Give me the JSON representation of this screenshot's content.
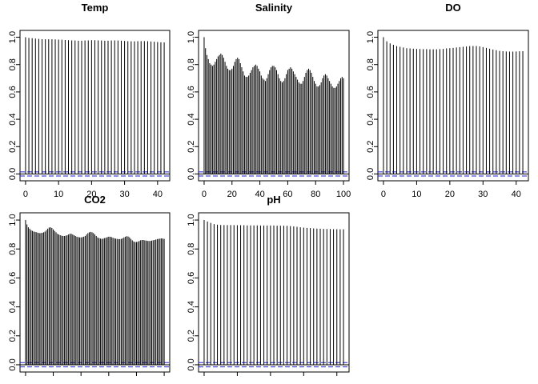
{
  "chart_data": [
    {
      "type": "bar",
      "title": "Temp",
      "xlabel": "",
      "ylabel": "",
      "xlim": [
        0,
        42
      ],
      "ylim": [
        0,
        1
      ],
      "x_ticks": [
        "0",
        "10",
        "20",
        "30",
        "40"
      ],
      "y_ticks": [
        "0.0",
        "0.2",
        "0.4",
        "0.6",
        "0.8",
        "1.0"
      ],
      "confidence_band": 0.015,
      "lags_from": 0,
      "values": [
        1.0,
        0.995,
        0.993,
        0.99,
        0.988,
        0.986,
        0.985,
        0.985,
        0.985,
        0.984,
        0.983,
        0.982,
        0.98,
        0.978,
        0.977,
        0.976,
        0.975,
        0.975,
        0.976,
        0.977,
        0.978,
        0.978,
        0.977,
        0.976,
        0.975,
        0.975,
        0.976,
        0.977,
        0.976,
        0.975,
        0.973,
        0.971,
        0.97,
        0.97,
        0.971,
        0.972,
        0.972,
        0.971,
        0.969,
        0.967,
        0.965,
        0.963,
        0.962
      ]
    },
    {
      "type": "bar",
      "title": "Salinity",
      "xlabel": "",
      "ylabel": "",
      "xlim": [
        0,
        100
      ],
      "ylim": [
        0,
        1
      ],
      "x_ticks": [
        "0",
        "20",
        "40",
        "60",
        "80",
        "100"
      ],
      "y_ticks": [
        "0.0",
        "0.2",
        "0.4",
        "0.6",
        "0.8",
        "1.0"
      ],
      "confidence_band": 0.015,
      "lags_from": 0,
      "values": [
        1.0,
        0.92,
        0.87,
        0.84,
        0.81,
        0.8,
        0.79,
        0.8,
        0.82,
        0.84,
        0.86,
        0.87,
        0.88,
        0.87,
        0.85,
        0.82,
        0.79,
        0.77,
        0.76,
        0.76,
        0.77,
        0.79,
        0.82,
        0.84,
        0.85,
        0.84,
        0.81,
        0.78,
        0.75,
        0.72,
        0.71,
        0.71,
        0.72,
        0.74,
        0.76,
        0.78,
        0.79,
        0.8,
        0.79,
        0.77,
        0.75,
        0.72,
        0.7,
        0.69,
        0.68,
        0.7,
        0.73,
        0.76,
        0.78,
        0.79,
        0.79,
        0.78,
        0.76,
        0.73,
        0.7,
        0.68,
        0.67,
        0.68,
        0.7,
        0.73,
        0.76,
        0.77,
        0.78,
        0.77,
        0.75,
        0.73,
        0.71,
        0.69,
        0.67,
        0.66,
        0.66,
        0.68,
        0.71,
        0.74,
        0.76,
        0.77,
        0.76,
        0.74,
        0.71,
        0.68,
        0.66,
        0.64,
        0.64,
        0.65,
        0.67,
        0.7,
        0.72,
        0.73,
        0.72,
        0.7,
        0.68,
        0.66,
        0.64,
        0.63,
        0.63,
        0.64,
        0.66,
        0.68,
        0.7,
        0.71,
        0.7
      ]
    },
    {
      "type": "bar",
      "title": "DO",
      "xlabel": "",
      "ylabel": "",
      "xlim": [
        0,
        42
      ],
      "ylim": [
        0,
        1
      ],
      "x_ticks": [
        "0",
        "10",
        "20",
        "30",
        "40"
      ],
      "y_ticks": [
        "0.0",
        "0.2",
        "0.4",
        "0.6",
        "0.8",
        "1.0"
      ],
      "confidence_band": 0.015,
      "lags_from": 0,
      "values": [
        1.0,
        0.97,
        0.955,
        0.945,
        0.935,
        0.93,
        0.925,
        0.92,
        0.918,
        0.916,
        0.915,
        0.914,
        0.913,
        0.913,
        0.912,
        0.912,
        0.912,
        0.913,
        0.915,
        0.918,
        0.92,
        0.922,
        0.925,
        0.928,
        0.93,
        0.932,
        0.935,
        0.936,
        0.936,
        0.933,
        0.928,
        0.922,
        0.916,
        0.91,
        0.905,
        0.9,
        0.898,
        0.896,
        0.895,
        0.895,
        0.896,
        0.897,
        0.898
      ]
    },
    {
      "type": "bar",
      "title": "CO2",
      "xlabel": "",
      "ylabel": "",
      "xlim": [
        0,
        100
      ],
      "ylim": [
        0,
        1
      ],
      "x_ticks": [
        "",
        "",
        "",
        "",
        "",
        ""
      ],
      "y_ticks": [
        "0.0",
        "0.2",
        "0.4",
        "0.6",
        "0.8",
        "1.0"
      ],
      "confidence_band": 0.015,
      "lags_from": 0,
      "values": [
        1.0,
        0.97,
        0.95,
        0.94,
        0.93,
        0.925,
        0.92,
        0.918,
        0.915,
        0.912,
        0.91,
        0.91,
        0.912,
        0.915,
        0.92,
        0.93,
        0.94,
        0.948,
        0.95,
        0.945,
        0.935,
        0.925,
        0.915,
        0.905,
        0.9,
        0.895,
        0.892,
        0.89,
        0.89,
        0.892,
        0.895,
        0.9,
        0.905,
        0.905,
        0.9,
        0.895,
        0.89,
        0.885,
        0.882,
        0.88,
        0.88,
        0.882,
        0.885,
        0.89,
        0.9,
        0.91,
        0.915,
        0.918,
        0.915,
        0.91,
        0.9,
        0.89,
        0.88,
        0.875,
        0.872,
        0.87,
        0.872,
        0.875,
        0.878,
        0.882,
        0.885,
        0.885,
        0.882,
        0.878,
        0.874,
        0.872,
        0.87,
        0.868,
        0.868,
        0.87,
        0.874,
        0.88,
        0.885,
        0.888,
        0.886,
        0.88,
        0.87,
        0.86,
        0.852,
        0.848,
        0.848,
        0.85,
        0.855,
        0.86,
        0.862,
        0.862,
        0.86,
        0.858,
        0.856,
        0.855,
        0.856,
        0.858,
        0.86,
        0.862,
        0.865,
        0.868,
        0.87,
        0.872,
        0.873,
        0.872,
        0.87
      ]
    },
    {
      "type": "bar",
      "title": "pH",
      "xlabel": "",
      "ylabel": "",
      "xlim": [
        0,
        42
      ],
      "ylim": [
        0,
        1
      ],
      "x_ticks": [
        "",
        "",
        "",
        "",
        ""
      ],
      "y_ticks": [
        "0.0",
        "0.2",
        "0.4",
        "0.6",
        "0.8",
        "1.0"
      ],
      "confidence_band": 0.015,
      "lags_from": 0,
      "values": [
        1.0,
        0.99,
        0.98,
        0.972,
        0.968,
        0.966,
        0.965,
        0.965,
        0.965,
        0.965,
        0.964,
        0.964,
        0.964,
        0.963,
        0.963,
        0.963,
        0.963,
        0.962,
        0.962,
        0.962,
        0.962,
        0.962,
        0.961,
        0.961,
        0.961,
        0.96,
        0.958,
        0.956,
        0.953,
        0.95,
        0.948,
        0.946,
        0.944,
        0.942,
        0.941,
        0.94,
        0.939,
        0.938,
        0.938,
        0.937,
        0.937,
        0.936,
        0.936
      ]
    }
  ]
}
